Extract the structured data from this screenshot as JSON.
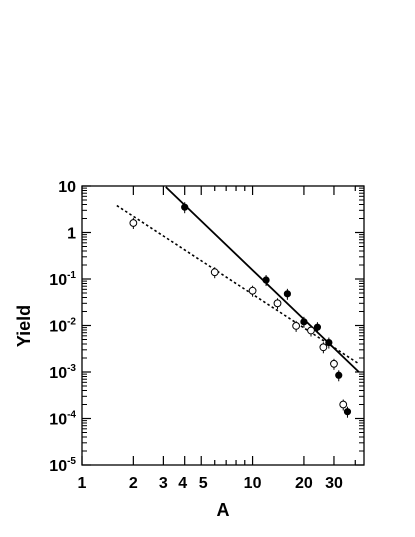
{
  "chart_data": {
    "type": "scatter",
    "xlabel": "A",
    "ylabel": "Yield",
    "x_scale": "log",
    "y_scale": "log",
    "xlim": [
      1,
      45
    ],
    "ylim": [
      1e-05,
      10
    ],
    "grid": false,
    "x_ticks": [
      {
        "value": 1,
        "label": "1"
      },
      {
        "value": 2,
        "label": "2"
      },
      {
        "value": 3,
        "label": "3"
      },
      {
        "value": 4,
        "label": "4"
      },
      {
        "value": 5,
        "label": "5"
      },
      {
        "value": 10,
        "label": "10"
      },
      {
        "value": 20,
        "label": "20"
      },
      {
        "value": 30,
        "label": "30"
      }
    ],
    "y_ticks": [
      {
        "value": 10,
        "base": "10",
        "exp": ""
      },
      {
        "value": 1,
        "base": "1",
        "exp": ""
      },
      {
        "value": 0.1,
        "base": "10",
        "exp": "-1"
      },
      {
        "value": 0.01,
        "base": "10",
        "exp": "-2"
      },
      {
        "value": 0.001,
        "base": "10",
        "exp": "-3"
      },
      {
        "value": 0.0001,
        "base": "10",
        "exp": "-4"
      },
      {
        "value": 1e-05,
        "base": "10",
        "exp": "-5"
      }
    ],
    "series": [
      {
        "marker": "filled-circle",
        "x": [
          4,
          12,
          16,
          20,
          24,
          28,
          32,
          36
        ],
        "y": [
          3.5,
          0.095,
          0.048,
          0.012,
          0.0092,
          0.0043,
          0.00085,
          0.00014
        ]
      },
      {
        "marker": "open-circle",
        "x": [
          2,
          6,
          10,
          14,
          18,
          22,
          26,
          30,
          34
        ],
        "y": [
          1.6,
          0.14,
          0.056,
          0.03,
          0.0098,
          0.0078,
          0.0034,
          0.0015,
          0.0002
        ]
      }
    ],
    "fits": [
      {
        "style": "solid",
        "x": [
          3.1,
          42
        ],
        "y": [
          9.5,
          0.001
        ]
      },
      {
        "style": "dotted",
        "x": [
          1.6,
          42
        ],
        "y": [
          3.8,
          0.0015
        ]
      }
    ]
  }
}
